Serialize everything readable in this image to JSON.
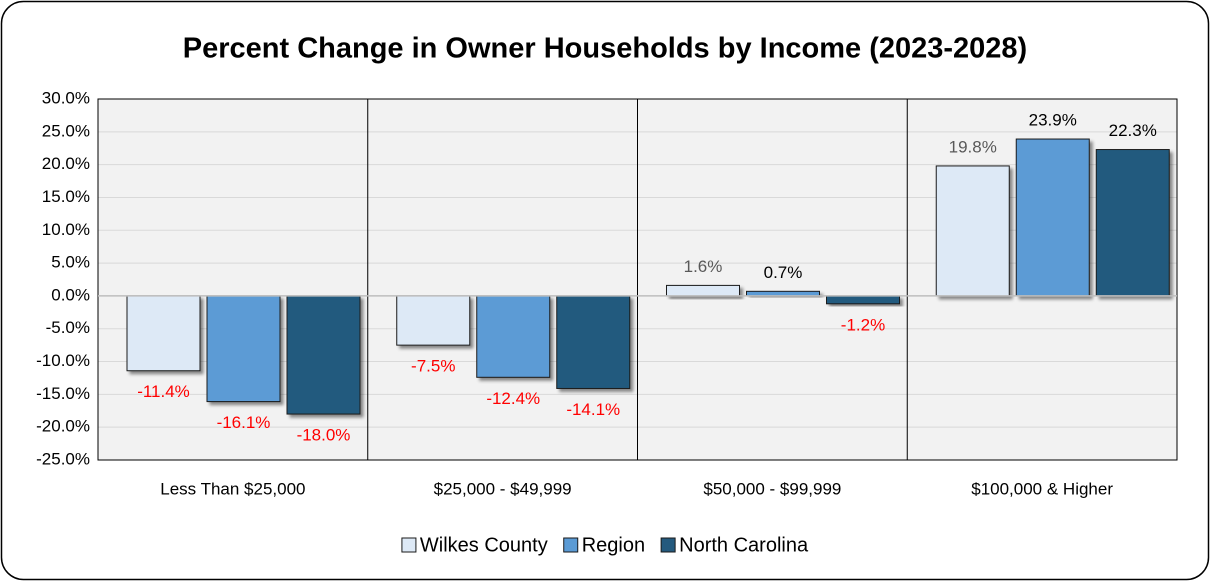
{
  "chart_data": {
    "type": "bar",
    "title": "Percent Change in Owner Households by Income (2023-2028)",
    "categories": [
      "Less Than $25,000",
      "$25,000 - $49,999",
      "$50,000 - $99,999",
      "$100,000 & Higher"
    ],
    "series": [
      {
        "name": "Wilkes County",
        "color": "#dde9f6",
        "values": [
          -11.4,
          -7.5,
          1.6,
          19.8
        ],
        "value_labels": [
          "-11.4%",
          "-7.5%",
          "1.6%",
          "19.8%"
        ]
      },
      {
        "name": "Region",
        "color": "#5b9bd5",
        "values": [
          -16.1,
          -12.4,
          0.7,
          23.9
        ],
        "value_labels": [
          "-16.1%",
          "-12.4%",
          "0.7%",
          "23.9%"
        ]
      },
      {
        "name": "North Carolina",
        "color": "#245a7e",
        "values": [
          -18.0,
          -14.1,
          -1.2,
          22.3
        ],
        "value_labels": [
          "-18.0%",
          "-14.1%",
          "-1.2%",
          "22.3%"
        ]
      }
    ],
    "ylim": [
      -25,
      30
    ],
    "yticks": [
      {
        "value": -25,
        "label": "-25.0%"
      },
      {
        "value": -20,
        "label": "-20.0%"
      },
      {
        "value": -15,
        "label": "-15.0%"
      },
      {
        "value": -10,
        "label": "-10.0%"
      },
      {
        "value": -5,
        "label": "-5.0%"
      },
      {
        "value": 0,
        "label": "0.0%"
      },
      {
        "value": 5,
        "label": "5.0%"
      },
      {
        "value": 10,
        "label": "10.0%"
      },
      {
        "value": 15,
        "label": "15.0%"
      },
      {
        "value": 20,
        "label": "20.0%"
      },
      {
        "value": 25,
        "label": "25.0%"
      },
      {
        "value": 30,
        "label": "30.0%"
      }
    ],
    "grid": true,
    "legend": "bottom"
  }
}
